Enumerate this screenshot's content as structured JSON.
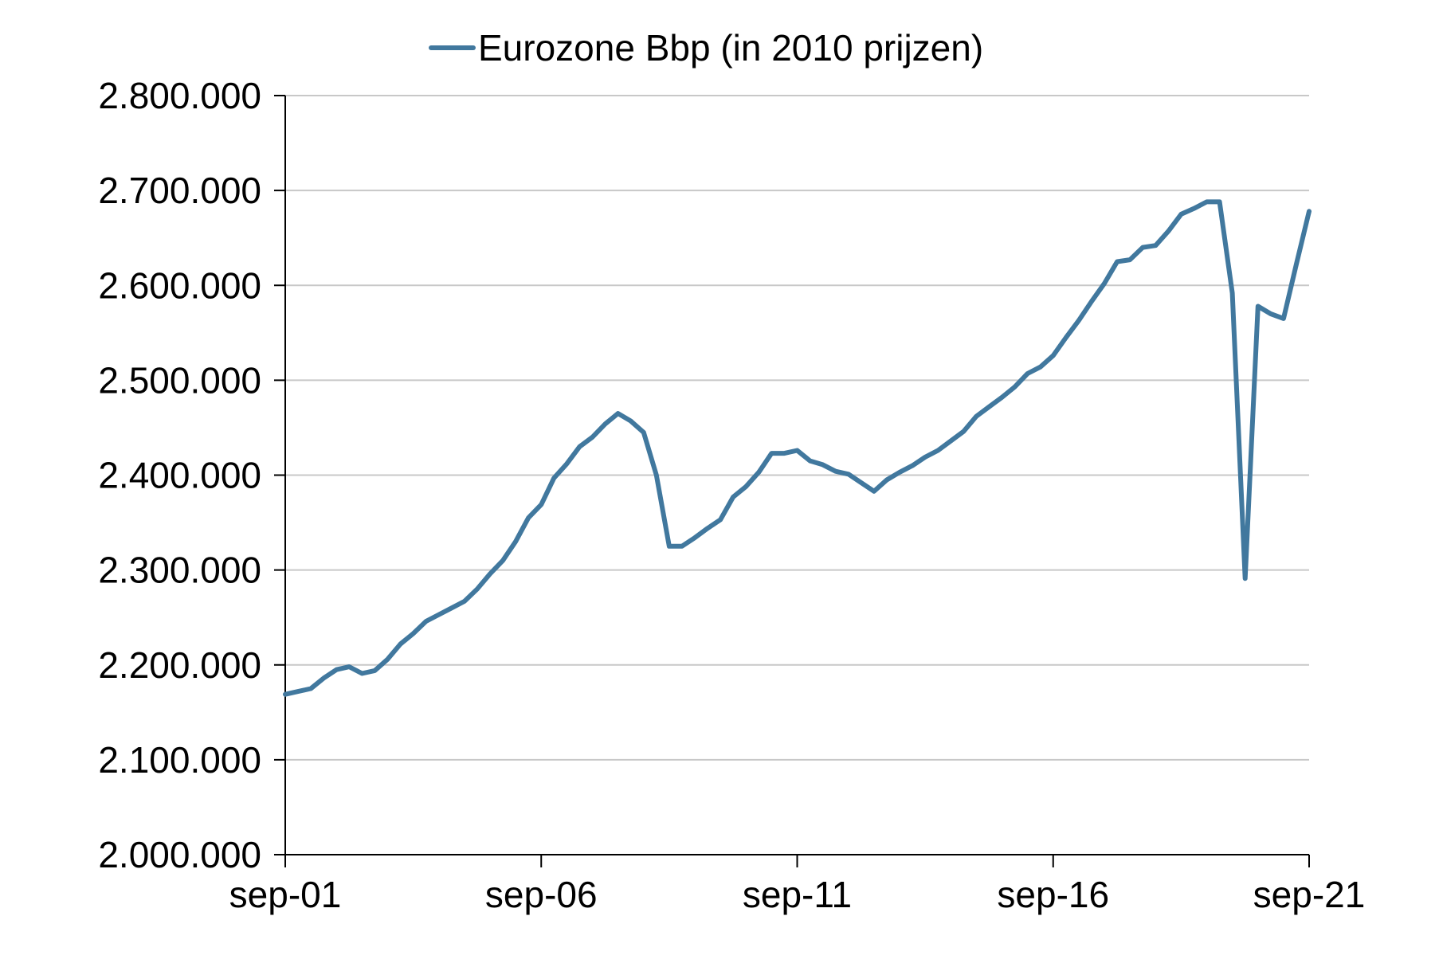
{
  "chart_data": {
    "type": "line",
    "title": "",
    "xlabel": "",
    "ylabel": "",
    "ylim": [
      2000000,
      2800000
    ],
    "y_ticks": [
      "2.000.000",
      "2.100.000",
      "2.200.000",
      "2.300.000",
      "2.400.000",
      "2.500.000",
      "2.600.000",
      "2.700.000",
      "2.800.000"
    ],
    "y_tick_values": [
      2000000,
      2100000,
      2200000,
      2300000,
      2400000,
      2500000,
      2600000,
      2700000,
      2800000
    ],
    "x_ticks": [
      "sep-01",
      "sep-06",
      "sep-11",
      "sep-16",
      "sep-21"
    ],
    "x_range": [
      "2001-09",
      "2021-09"
    ],
    "grid": "horizontal",
    "legend": "top-center",
    "series": [
      {
        "name": "Eurozone Bbp (in 2010 prijzen)",
        "color": "#41789E",
        "x": [
          "2001-09",
          "2001-12",
          "2002-03",
          "2002-06",
          "2002-09",
          "2002-12",
          "2003-03",
          "2003-06",
          "2003-09",
          "2003-12",
          "2004-03",
          "2004-06",
          "2004-09",
          "2004-12",
          "2005-03",
          "2005-06",
          "2005-09",
          "2005-12",
          "2006-03",
          "2006-06",
          "2006-09",
          "2006-12",
          "2007-03",
          "2007-06",
          "2007-09",
          "2007-12",
          "2008-03",
          "2008-06",
          "2008-09",
          "2008-12",
          "2009-03",
          "2009-06",
          "2009-09",
          "2009-12",
          "2010-03",
          "2010-06",
          "2010-09",
          "2010-12",
          "2011-03",
          "2011-06",
          "2011-09",
          "2011-12",
          "2012-03",
          "2012-06",
          "2012-09",
          "2012-12",
          "2013-03",
          "2013-06",
          "2013-09",
          "2013-12",
          "2014-03",
          "2014-06",
          "2014-09",
          "2014-12",
          "2015-03",
          "2015-06",
          "2015-09",
          "2015-12",
          "2016-03",
          "2016-06",
          "2016-09",
          "2016-12",
          "2017-03",
          "2017-06",
          "2017-09",
          "2017-12",
          "2018-03",
          "2018-06",
          "2018-09",
          "2018-12",
          "2019-03",
          "2019-06",
          "2019-09",
          "2019-12",
          "2020-03",
          "2020-06",
          "2020-09",
          "2020-12",
          "2021-03",
          "2021-06",
          "2021-09"
        ],
        "values": [
          2169000,
          2172000,
          2175000,
          2186000,
          2195000,
          2198000,
          2191000,
          2194000,
          2206000,
          2222000,
          2233000,
          2246000,
          2253000,
          2260000,
          2267000,
          2280000,
          2296000,
          2310000,
          2330000,
          2355000,
          2369000,
          2397000,
          2412000,
          2430000,
          2440000,
          2454000,
          2465000,
          2457000,
          2445000,
          2400000,
          2325000,
          2325000,
          2334000,
          2344000,
          2353000,
          2377000,
          2388000,
          2403000,
          2423000,
          2423000,
          2426000,
          2415000,
          2411000,
          2404000,
          2401000,
          2392000,
          2383000,
          2395000,
          2403000,
          2410000,
          2419000,
          2426000,
          2436000,
          2446000,
          2462000,
          2472000,
          2482000,
          2493000,
          2507000,
          2514000,
          2526000,
          2545000,
          2563000,
          2583000,
          2602000,
          2625000,
          2627000,
          2640000,
          2642000,
          2657000,
          2675000,
          2681000,
          2688000,
          2688000,
          2592000,
          2291000,
          2578000,
          2570000,
          2565000,
          2622000,
          2678000
        ]
      }
    ]
  }
}
